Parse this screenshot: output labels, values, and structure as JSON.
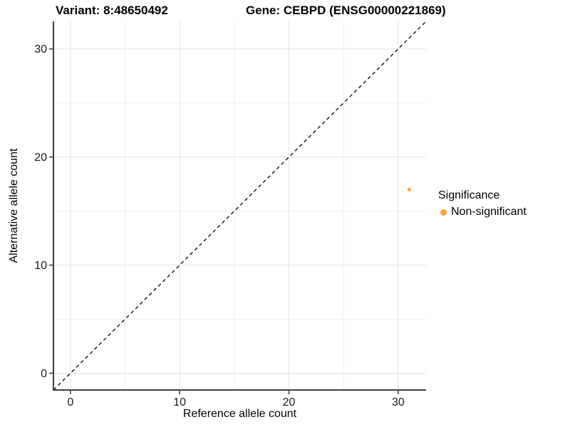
{
  "header": {
    "variant_title": "Variant: 8:48650492",
    "gene_title": "Gene: CEBPD (ENSG00000221869)"
  },
  "chart_data": {
    "type": "scatter",
    "xlabel": "Reference allele count",
    "ylabel": "Alternative allele count",
    "xlim": [
      -1.55,
      32.55
    ],
    "ylim": [
      -1.55,
      32.55
    ],
    "x_major_ticks": [
      0,
      10,
      20,
      30
    ],
    "y_major_ticks": [
      0,
      10,
      20,
      30
    ],
    "x_minor_ticks": [
      5,
      15,
      25
    ],
    "y_minor_ticks": [
      5,
      15,
      25
    ],
    "grid": true,
    "identity_line": {
      "style": "dashed",
      "color": "#000000",
      "from": [
        -1.55,
        -1.55
      ],
      "to": [
        32.55,
        32.55
      ]
    },
    "series": [
      {
        "name": "Non-significant",
        "color": "#FAA43A",
        "points": [
          {
            "x": 31,
            "y": 17
          }
        ]
      }
    ],
    "legend": {
      "title": "Significance",
      "position": "right",
      "items": [
        {
          "label": "Non-significant",
          "color": "#FAA43A"
        }
      ]
    },
    "style_colors": {
      "grid_major": "#E3E3E3",
      "grid_minor": "#F0F0F0",
      "axis_line": "#3C3C3C",
      "tick_mark": "#333333",
      "tick_label": "#1A1A1A"
    }
  }
}
